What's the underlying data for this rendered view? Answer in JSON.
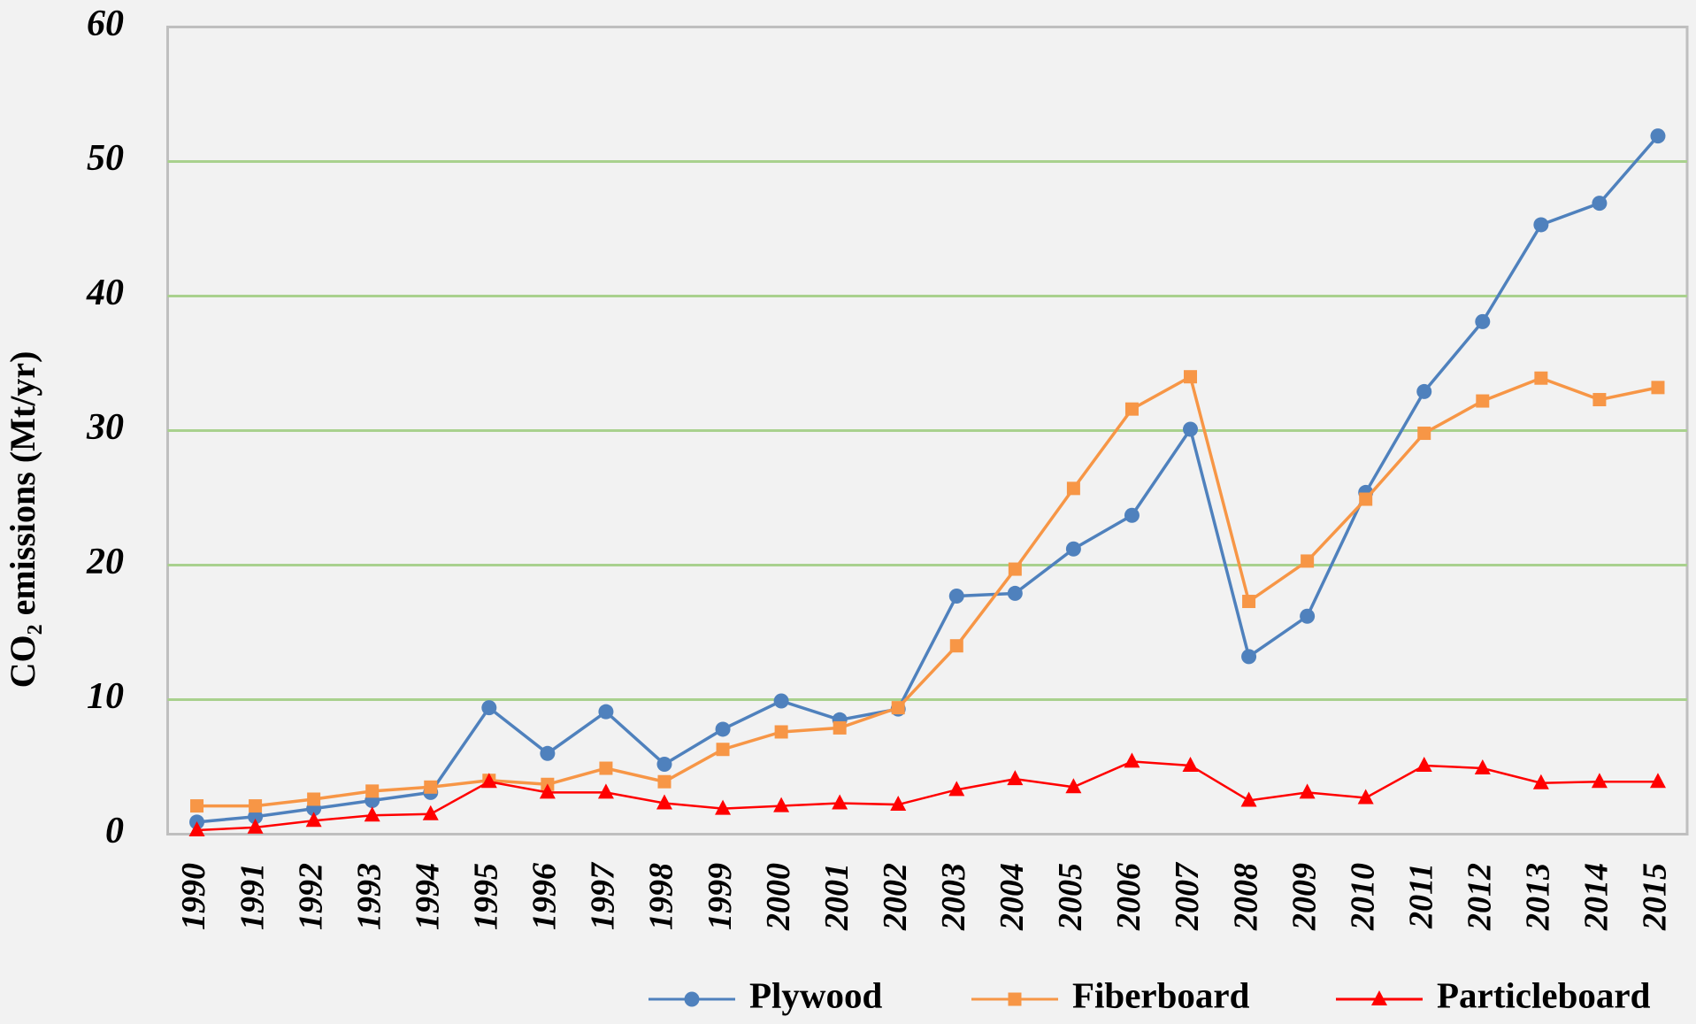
{
  "chart_data": {
    "type": "line",
    "y_label": "CO₂ emissions (Mt/yr)",
    "categories": [
      "1990",
      "1991",
      "1992",
      "1993",
      "1994",
      "1995",
      "1996",
      "1997",
      "1998",
      "1999",
      "2000",
      "2001",
      "2002",
      "2003",
      "2004",
      "2005",
      "2006",
      "2007",
      "2008",
      "2009",
      "2010",
      "2011",
      "2012",
      "2013",
      "2014",
      "2015"
    ],
    "series": [
      {
        "name": "Plywood",
        "color": "#4f81bd",
        "marker": "circle",
        "values": [
          0.9,
          1.3,
          1.9,
          2.5,
          3.1,
          9.4,
          6.0,
          9.1,
          5.2,
          7.8,
          9.9,
          8.5,
          9.3,
          17.7,
          17.9,
          21.2,
          23.7,
          30.1,
          13.2,
          16.2,
          25.4,
          32.9,
          38.1,
          45.3,
          46.9,
          51.9
        ]
      },
      {
        "name": "Fiberboard",
        "color": "#f79646",
        "marker": "square",
        "values": [
          2.1,
          2.1,
          2.6,
          3.2,
          3.5,
          4.0,
          3.7,
          4.9,
          3.9,
          6.3,
          7.6,
          7.9,
          9.4,
          14.0,
          19.7,
          25.7,
          31.6,
          34.0,
          17.3,
          20.3,
          24.9,
          29.8,
          32.2,
          33.9,
          32.3,
          33.2
        ]
      },
      {
        "name": "Particleboard",
        "color": "#ff0000",
        "marker": "triangle",
        "values": [
          0.3,
          0.5,
          1.0,
          1.4,
          1.5,
          3.9,
          3.1,
          3.1,
          2.3,
          1.9,
          2.1,
          2.3,
          2.2,
          3.3,
          4.1,
          3.5,
          5.4,
          5.1,
          2.5,
          3.1,
          2.7,
          5.1,
          4.9,
          3.8,
          3.9,
          3.9
        ]
      }
    ],
    "ylim": [
      0,
      60
    ],
    "yticks": [
      0,
      10,
      20,
      30,
      40,
      50,
      60
    ],
    "grid": true,
    "grid_color": "#a9d18e",
    "legend": "bottom"
  }
}
